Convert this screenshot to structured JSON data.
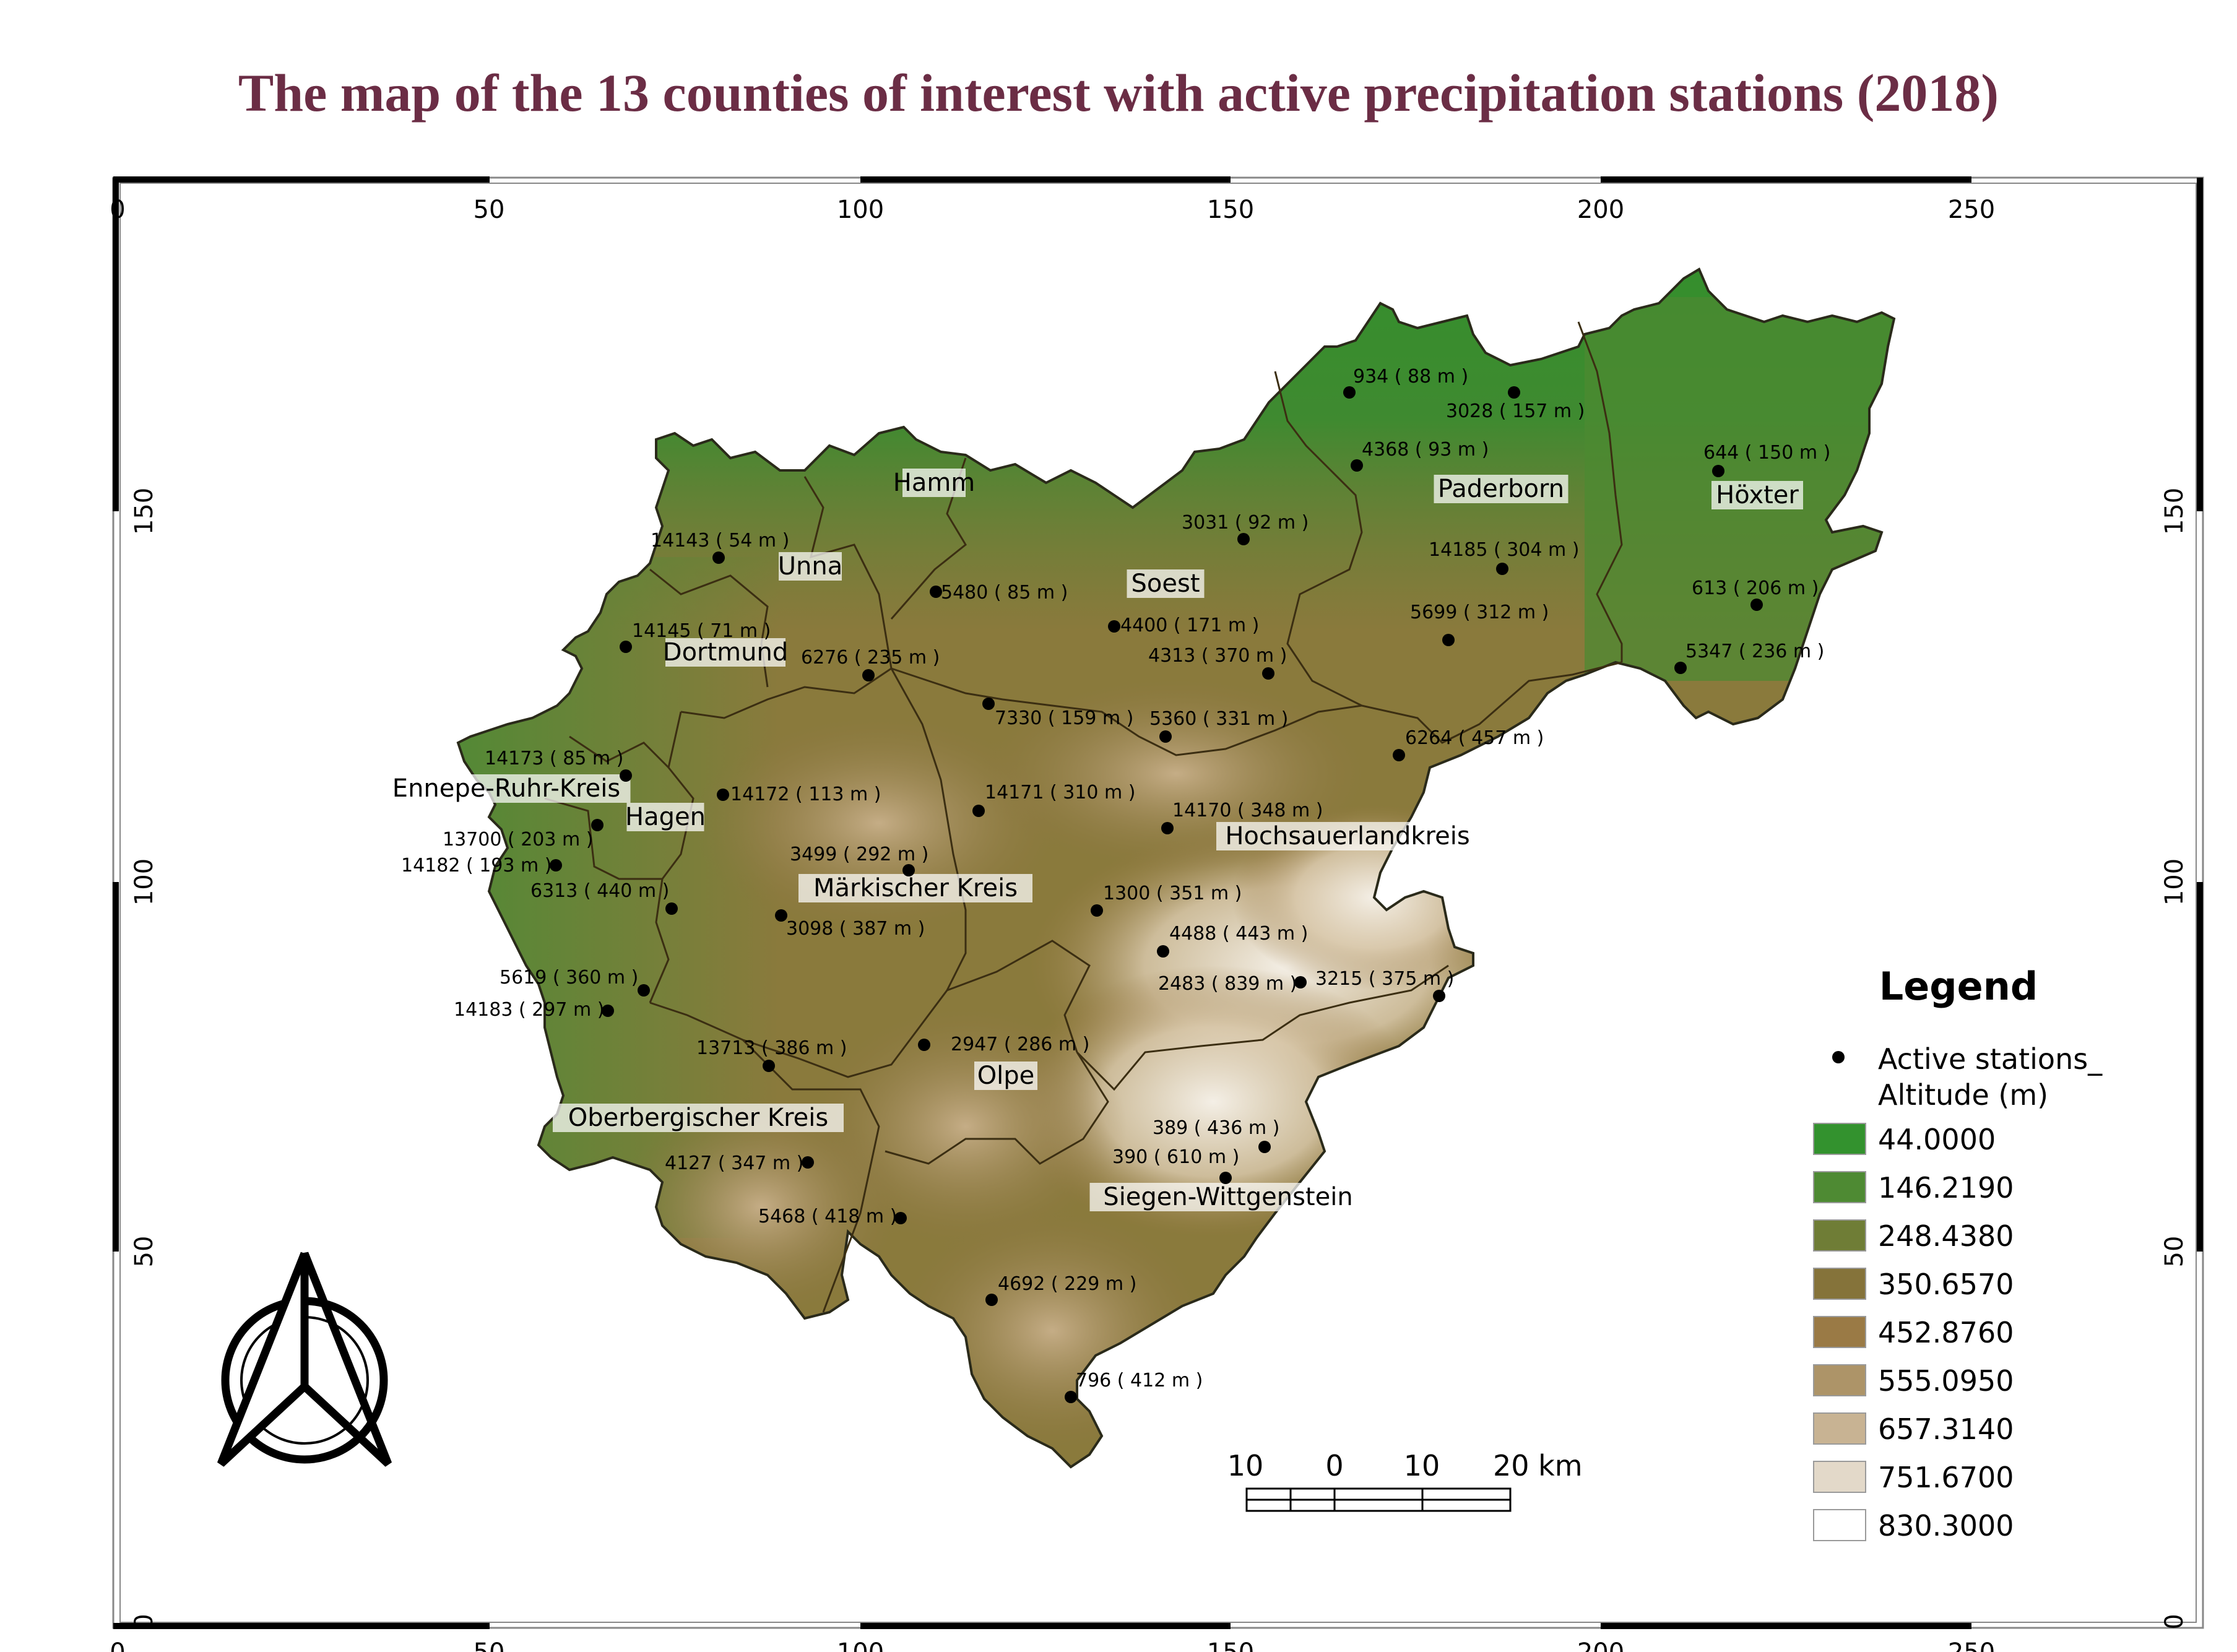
{
  "title": "The map of the 13 counties of interest with active precipitation stations (2018)",
  "axes": {
    "x_ticks": [
      "0",
      "50",
      "100",
      "150",
      "200",
      "250"
    ],
    "y_ticks": [
      "0",
      "50",
      "100",
      "150"
    ]
  },
  "counties": [
    "Hamm",
    "Unna",
    "Dortmund",
    "Soest",
    "Paderborn",
    "Höxter",
    "Ennepe-Ruhr-Kreis",
    "Hagen",
    "Märkischer Kreis",
    "Hochsauerlandkreis",
    "Olpe",
    "Oberbergischer Kreis",
    "Siegen-Wittgenstein"
  ],
  "stations": [
    {
      "label": "934 ( 88 m )"
    },
    {
      "label": "3028 ( 157 m )"
    },
    {
      "label": "4368 ( 93 m )"
    },
    {
      "label": "644 ( 150 m )"
    },
    {
      "label": "3031 ( 92 m )"
    },
    {
      "label": "14185 ( 304 m )"
    },
    {
      "label": "14143 ( 54 m )"
    },
    {
      "label": "613 ( 206 m )"
    },
    {
      "label": "5480 ( 85 m )"
    },
    {
      "label": "5699 ( 312 m )"
    },
    {
      "label": "14145 ( 71 m )"
    },
    {
      "label": "4400 ( 171 m )"
    },
    {
      "label": "6276 ( 235 m )"
    },
    {
      "label": "4313 ( 370 m )"
    },
    {
      "label": "5347 ( 236 m )"
    },
    {
      "label": "7330 ( 159 m )"
    },
    {
      "label": "5360 ( 331 m )"
    },
    {
      "label": "14173 ( 85 m )"
    },
    {
      "label": "6264 ( 457 m )"
    },
    {
      "label": "14172 ( 113 m )"
    },
    {
      "label": "14171 ( 310 m )"
    },
    {
      "label": "14170 ( 348 m )"
    },
    {
      "label": "13700 ( 203 m )"
    },
    {
      "label": "3499 ( 292 m )"
    },
    {
      "label": "14182 ( 193 m )"
    },
    {
      "label": "6313 ( 440 m )"
    },
    {
      "label": "1300 ( 351 m )"
    },
    {
      "label": "3098 ( 387 m )"
    },
    {
      "label": "4488 ( 443 m )"
    },
    {
      "label": "2483 ( 839 m )"
    },
    {
      "label": "3215 ( 375 m )"
    },
    {
      "label": "5619 ( 360 m )"
    },
    {
      "label": "14183 ( 297 m )"
    },
    {
      "label": "2947 ( 286 m )"
    },
    {
      "label": "13713 ( 386 m )"
    },
    {
      "label": "389 ( 436 m )"
    },
    {
      "label": "390 ( 610 m )"
    },
    {
      "label": "4127 ( 347 m )"
    },
    {
      "label": "5468 ( 418 m )"
    },
    {
      "label": "4692 ( 229 m )"
    },
    {
      "label": "796 ( 412 m )"
    }
  ],
  "scale_bar": {
    "labels": [
      "10",
      "0",
      "10",
      "20 km"
    ]
  },
  "legend": {
    "title": "Legend",
    "stations_label_line1": "Active stations_",
    "stations_label_line2": "Altitude (m)",
    "classes": [
      {
        "value": "44.0000",
        "color": "#33922e"
      },
      {
        "value": "146.2190",
        "color": "#4e8a33"
      },
      {
        "value": "248.4380",
        "color": "#6f7d36"
      },
      {
        "value": "350.6570",
        "color": "#85733a"
      },
      {
        "value": "452.8760",
        "color": "#9a7a45"
      },
      {
        "value": "555.0950",
        "color": "#ad9468"
      },
      {
        "value": "657.3140",
        "color": "#c8b393"
      },
      {
        "value": "751.6700",
        "color": "#e3d9c9"
      },
      {
        "value": "830.3000",
        "color": "#ffffff"
      }
    ]
  },
  "colors": {
    "title": "#6b2d45",
    "border": "#000000"
  }
}
